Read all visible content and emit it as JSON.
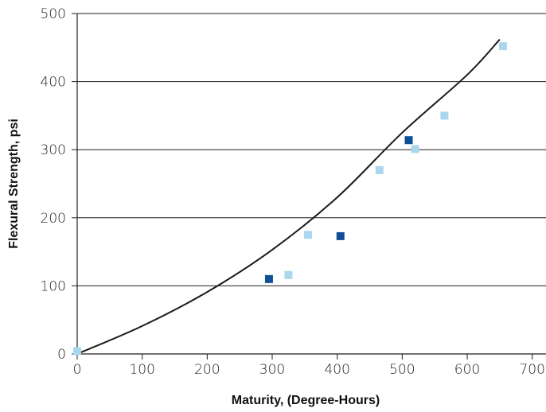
{
  "chart_data": {
    "type": "scatter",
    "title": "",
    "xlabel": "Maturity, (Degree-Hours)",
    "ylabel": "Flexural Strength, psi",
    "xlim": [
      0,
      700
    ],
    "ylim": [
      0,
      500
    ],
    "xticks": [
      0,
      100,
      200,
      300,
      400,
      500,
      600,
      700
    ],
    "yticks": [
      0,
      100,
      200,
      300,
      400,
      500
    ],
    "xtick_labels": [
      "0",
      "100",
      "200",
      "300",
      "400",
      "500",
      "600",
      "700"
    ],
    "ytick_labels": [
      "0",
      "100",
      "200",
      "300",
      "400",
      "500"
    ],
    "grid": "horizontal",
    "legend": "none",
    "series": [
      {
        "marker": "square",
        "color": "#0f4f95",
        "x": [
          295,
          405,
          510
        ],
        "y": [
          110,
          173,
          314
        ]
      },
      {
        "marker": "square",
        "color": "#a9d8ee",
        "x": [
          0,
          325,
          355,
          465,
          520,
          565,
          655
        ],
        "y": [
          4,
          116,
          175,
          270,
          301,
          350,
          452
        ]
      }
    ],
    "trendline": {
      "type": "exponential",
      "color": "#1a1a1a",
      "x_range": [
        0,
        650
      ],
      "points": [
        [
          0,
          0
        ],
        [
          100,
          41
        ],
        [
          200,
          91
        ],
        [
          300,
          153
        ],
        [
          400,
          230
        ],
        [
          500,
          325
        ],
        [
          600,
          410
        ],
        [
          650,
          462
        ]
      ]
    }
  }
}
